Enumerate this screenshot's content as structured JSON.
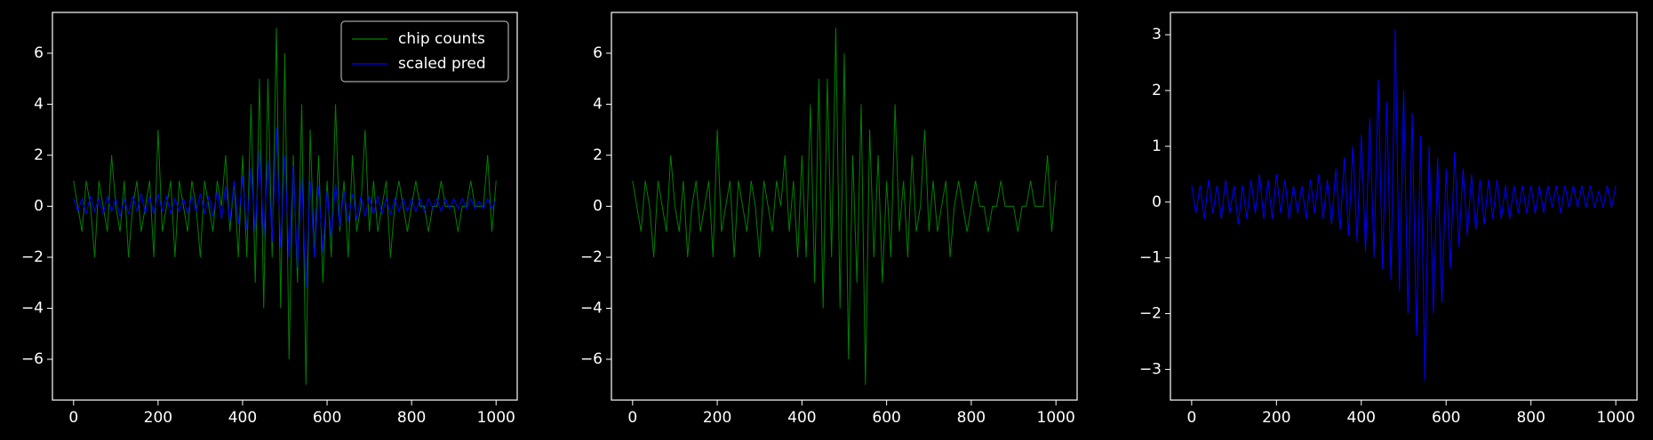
{
  "chart_data": [
    {
      "type": "line",
      "legend": "upper right",
      "x": [
        0,
        10,
        20,
        30,
        40,
        50,
        60,
        70,
        80,
        90,
        100,
        110,
        120,
        130,
        140,
        150,
        160,
        170,
        180,
        190,
        200,
        210,
        220,
        230,
        240,
        250,
        260,
        270,
        280,
        290,
        300,
        310,
        320,
        330,
        340,
        350,
        360,
        370,
        380,
        390,
        400,
        410,
        420,
        430,
        440,
        450,
        460,
        470,
        480,
        490,
        500,
        510,
        520,
        530,
        540,
        550,
        560,
        570,
        580,
        590,
        600,
        610,
        620,
        630,
        640,
        650,
        660,
        670,
        680,
        690,
        700,
        710,
        720,
        730,
        740,
        750,
        760,
        770,
        780,
        790,
        800,
        810,
        820,
        830,
        840,
        850,
        860,
        870,
        880,
        890,
        900,
        910,
        920,
        930,
        940,
        950,
        960,
        970,
        980,
        990,
        1000
      ],
      "series": [
        {
          "name": "chip counts",
          "color": "#008000",
          "values": [
            1,
            0,
            -1,
            1,
            0,
            -2,
            1,
            0,
            -1,
            2,
            0,
            -1,
            1,
            -2,
            0,
            1,
            -1,
            0,
            1,
            -2,
            3,
            -1,
            0,
            1,
            -2,
            1,
            0,
            -1,
            1,
            0,
            -2,
            1,
            0,
            -1,
            1,
            0,
            2,
            -1,
            1,
            -2,
            2,
            -2,
            4,
            -3,
            5,
            -4,
            5,
            -2,
            7,
            -4,
            6,
            -6,
            2,
            -3,
            4,
            -7,
            3,
            -2,
            2,
            -3,
            1,
            -2,
            4,
            -1,
            1,
            -2,
            2,
            -1,
            0,
            3,
            -1,
            1,
            -1,
            0,
            1,
            -2,
            0,
            1,
            0,
            -1,
            0,
            1,
            0,
            0,
            -1,
            0,
            0,
            1,
            0,
            0,
            0,
            -1,
            0,
            0,
            1,
            0,
            0,
            0,
            2,
            -1,
            1
          ]
        },
        {
          "name": "scaled pred",
          "color": "#0000ff",
          "values": [
            0.3,
            -0.2,
            0.3,
            -0.3,
            0.4,
            -0.2,
            0.3,
            -0.3,
            0.4,
            -0.2,
            0.3,
            -0.4,
            0.3,
            -0.3,
            0.4,
            -0.2,
            0.5,
            -0.3,
            0.4,
            -0.3,
            0.5,
            -0.2,
            0.4,
            -0.3,
            0.3,
            -0.2,
            0.3,
            -0.3,
            0.4,
            -0.2,
            0.5,
            -0.3,
            0.4,
            -0.4,
            0.6,
            -0.5,
            0.8,
            -0.6,
            1.0,
            -0.7,
            1.2,
            -0.9,
            1.5,
            -1.0,
            2.2,
            -1.2,
            1.8,
            -1.4,
            3.1,
            -1.6,
            2.0,
            -2.0,
            1.6,
            -2.4,
            1.2,
            -3.2,
            1.0,
            -2.0,
            0.8,
            -1.8,
            0.6,
            -1.2,
            0.9,
            -0.8,
            0.6,
            -0.6,
            0.5,
            -0.5,
            0.4,
            -0.4,
            0.4,
            -0.3,
            0.4,
            -0.3,
            0.3,
            -0.3,
            0.3,
            -0.2,
            0.3,
            -0.2,
            0.3,
            -0.2,
            0.3,
            -0.2,
            0.3,
            -0.1,
            0.3,
            -0.2,
            0.3,
            -0.1,
            0.3,
            -0.1,
            0.3,
            -0.1,
            0.3,
            -0.1,
            0.2,
            -0.1,
            0.3,
            -0.1,
            0.3
          ]
        }
      ],
      "xlim": [
        -50,
        1050
      ],
      "xticks": [
        0,
        200,
        400,
        600,
        800,
        1000
      ],
      "ylim": [
        -7.6,
        7.6
      ],
      "yticks": [
        {
          "value": -6,
          "label": "−6"
        },
        {
          "value": -4,
          "label": "−4"
        },
        {
          "value": -2,
          "label": "−2"
        },
        0,
        2,
        4,
        6
      ]
    },
    {
      "type": "line",
      "x": [
        0,
        10,
        20,
        30,
        40,
        50,
        60,
        70,
        80,
        90,
        100,
        110,
        120,
        130,
        140,
        150,
        160,
        170,
        180,
        190,
        200,
        210,
        220,
        230,
        240,
        250,
        260,
        270,
        280,
        290,
        300,
        310,
        320,
        330,
        340,
        350,
        360,
        370,
        380,
        390,
        400,
        410,
        420,
        430,
        440,
        450,
        460,
        470,
        480,
        490,
        500,
        510,
        520,
        530,
        540,
        550,
        560,
        570,
        580,
        590,
        600,
        610,
        620,
        630,
        640,
        650,
        660,
        670,
        680,
        690,
        700,
        710,
        720,
        730,
        740,
        750,
        760,
        770,
        780,
        790,
        800,
        810,
        820,
        830,
        840,
        850,
        860,
        870,
        880,
        890,
        900,
        910,
        920,
        930,
        940,
        950,
        960,
        970,
        980,
        990,
        1000
      ],
      "series": [
        {
          "color": "#008000",
          "values": [
            1,
            0,
            -1,
            1,
            0,
            -2,
            1,
            0,
            -1,
            2,
            0,
            -1,
            1,
            -2,
            0,
            1,
            -1,
            0,
            1,
            -2,
            3,
            -1,
            0,
            1,
            -2,
            1,
            0,
            -1,
            1,
            0,
            -2,
            1,
            0,
            -1,
            1,
            0,
            2,
            -1,
            1,
            -2,
            2,
            -2,
            4,
            -3,
            5,
            -4,
            5,
            -2,
            7,
            -4,
            6,
            -6,
            2,
            -3,
            4,
            -7,
            3,
            -2,
            2,
            -3,
            1,
            -2,
            4,
            -1,
            1,
            -2,
            2,
            -1,
            0,
            3,
            -1,
            1,
            -1,
            0,
            1,
            -2,
            0,
            1,
            0,
            -1,
            0,
            1,
            0,
            0,
            -1,
            0,
            0,
            1,
            0,
            0,
            0,
            -1,
            0,
            0,
            1,
            0,
            0,
            0,
            2,
            -1,
            1
          ]
        }
      ],
      "xlim": [
        -50,
        1050
      ],
      "xticks": [
        0,
        200,
        400,
        600,
        800,
        1000
      ],
      "ylim": [
        -7.6,
        7.6
      ],
      "yticks": [
        {
          "value": -6,
          "label": "−6"
        },
        {
          "value": -4,
          "label": "−4"
        },
        {
          "value": -2,
          "label": "−2"
        },
        0,
        2,
        4,
        6
      ]
    },
    {
      "type": "line",
      "x": [
        0,
        10,
        20,
        30,
        40,
        50,
        60,
        70,
        80,
        90,
        100,
        110,
        120,
        130,
        140,
        150,
        160,
        170,
        180,
        190,
        200,
        210,
        220,
        230,
        240,
        250,
        260,
        270,
        280,
        290,
        300,
        310,
        320,
        330,
        340,
        350,
        360,
        370,
        380,
        390,
        400,
        410,
        420,
        430,
        440,
        450,
        460,
        470,
        480,
        490,
        500,
        510,
        520,
        530,
        540,
        550,
        560,
        570,
        580,
        590,
        600,
        610,
        620,
        630,
        640,
        650,
        660,
        670,
        680,
        690,
        700,
        710,
        720,
        730,
        740,
        750,
        760,
        770,
        780,
        790,
        800,
        810,
        820,
        830,
        840,
        850,
        860,
        870,
        880,
        890,
        900,
        910,
        920,
        930,
        940,
        950,
        960,
        970,
        980,
        990,
        1000
      ],
      "series": [
        {
          "color": "#0000ff",
          "values": [
            0.3,
            -0.2,
            0.3,
            -0.3,
            0.4,
            -0.2,
            0.3,
            -0.3,
            0.4,
            -0.2,
            0.3,
            -0.4,
            0.3,
            -0.3,
            0.4,
            -0.2,
            0.5,
            -0.3,
            0.4,
            -0.3,
            0.5,
            -0.2,
            0.4,
            -0.3,
            0.3,
            -0.2,
            0.3,
            -0.3,
            0.4,
            -0.2,
            0.5,
            -0.3,
            0.4,
            -0.4,
            0.6,
            -0.5,
            0.8,
            -0.6,
            1.0,
            -0.7,
            1.2,
            -0.9,
            1.5,
            -1.0,
            2.2,
            -1.2,
            1.8,
            -1.4,
            3.1,
            -1.6,
            2.0,
            -2.0,
            1.6,
            -2.4,
            1.2,
            -3.2,
            1.0,
            -2.0,
            0.8,
            -1.8,
            0.6,
            -1.2,
            0.9,
            -0.8,
            0.6,
            -0.6,
            0.5,
            -0.5,
            0.4,
            -0.4,
            0.4,
            -0.3,
            0.4,
            -0.3,
            0.3,
            -0.3,
            0.3,
            -0.2,
            0.3,
            -0.2,
            0.3,
            -0.2,
            0.3,
            -0.2,
            0.3,
            -0.1,
            0.3,
            -0.2,
            0.3,
            -0.1,
            0.3,
            -0.1,
            0.3,
            -0.1,
            0.3,
            -0.1,
            0.2,
            -0.1,
            0.3,
            -0.1,
            0.3
          ]
        }
      ],
      "xlim": [
        -50,
        1050
      ],
      "xticks": [
        0,
        200,
        400,
        600,
        800,
        1000
      ],
      "ylim": [
        -3.55,
        3.4
      ],
      "yticks": [
        {
          "value": -3,
          "label": "−3"
        },
        {
          "value": -2,
          "label": "−2"
        },
        {
          "value": -1,
          "label": "−1"
        },
        0,
        1,
        2,
        3
      ]
    }
  ]
}
